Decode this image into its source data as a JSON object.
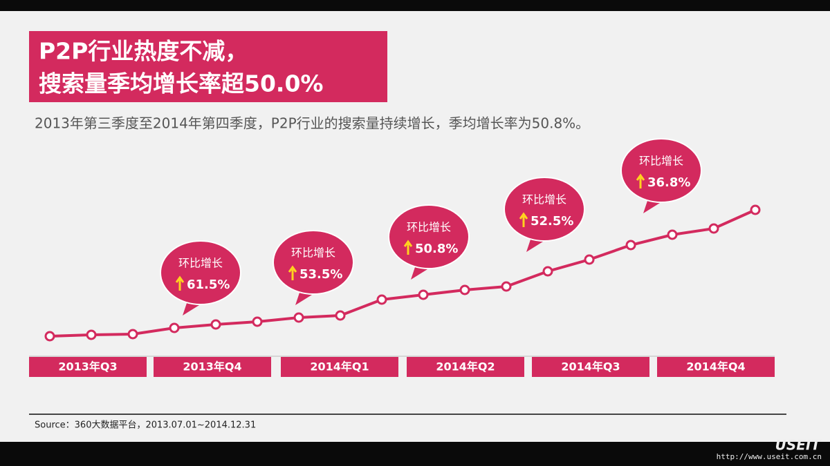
{
  "header": {
    "title_lines": [
      "P2P行业热度不减，",
      "搜索量季均增长率超50.0%"
    ],
    "subtitle": "2013年第三季度至2014年第四季度，P2P行业的搜索量持续增长，季均增长率为50.8%。"
  },
  "chart_data": {
    "type": "line",
    "color": "#d32a5e",
    "groups": [
      "2013年Q3",
      "2013年Q4",
      "2014年Q1",
      "2014年Q2",
      "2014年Q3",
      "2014年Q4"
    ],
    "values": [
      6.5,
      7.5,
      8,
      12.5,
      15,
      17,
      20,
      21.5,
      33,
      36.5,
      40,
      42.5,
      53.5,
      62,
      72.5,
      80,
      84.5,
      98
    ],
    "ylim": [
      0,
      100
    ],
    "callout_title": "环比增长",
    "callouts": [
      "61.5%",
      "53.5%",
      "50.8%",
      "52.5%",
      "36.8%"
    ]
  },
  "footer": {
    "source": "Source：360大数据平台，2013.07.01~2014.12.31",
    "brand": "USEIT",
    "url": "http://www.useit.com.cn"
  }
}
